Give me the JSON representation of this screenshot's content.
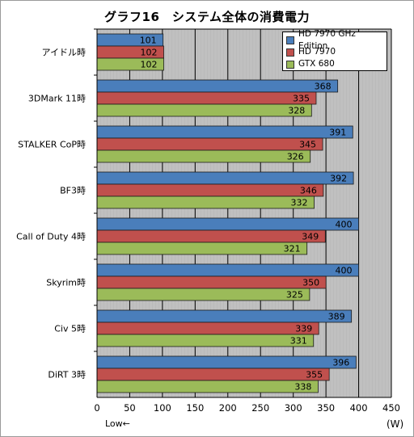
{
  "chart_data": {
    "type": "bar",
    "orientation": "horizontal",
    "title": "グラフ16　システム全体の消費電力",
    "categories": [
      "アイドル時",
      "3DMark 11時",
      "STALKER  CoP時",
      "BF3時",
      "Call of Duty 4時",
      "Skyrim時",
      "Civ 5時",
      "DiRT 3時"
    ],
    "series": [
      {
        "name": "HD 7970 GHz Edition",
        "color": "#4a7ebb",
        "values": [
          101,
          368,
          391,
          392,
          400,
          400,
          389,
          396
        ]
      },
      {
        "name": "HD 7970",
        "color": "#c0504d",
        "values": [
          102,
          335,
          345,
          346,
          349,
          350,
          339,
          355
        ]
      },
      {
        "name": "GTX 680",
        "color": "#9bbb59",
        "values": [
          102,
          328,
          326,
          332,
          321,
          325,
          331,
          338
        ]
      }
    ],
    "xlim": [
      0,
      450
    ],
    "xticks": [
      "0",
      "50",
      "100",
      "150",
      "200",
      "250",
      "300",
      "350",
      "400",
      "450"
    ],
    "unit_label": "(W)",
    "direction_note": "Low←",
    "legend_position": "top-right",
    "grid": true
  }
}
